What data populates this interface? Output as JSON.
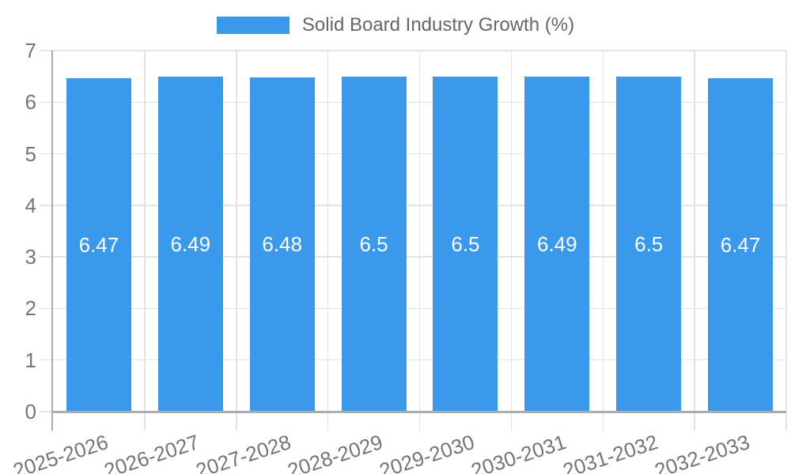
{
  "chart_data": {
    "type": "bar",
    "title": "Solid Board Industry Growth (%)",
    "legend": {
      "label": "Solid Board Industry Growth (%)",
      "position": "top"
    },
    "categories": [
      "2025-2026",
      "2026-2027",
      "2027-2028",
      "2028-2029",
      "2029-2030",
      "2030-2031",
      "2031-2032",
      "2032-2033"
    ],
    "series": [
      {
        "name": "Solid Board Industry Growth (%)",
        "values": [
          6.47,
          6.49,
          6.48,
          6.5,
          6.5,
          6.49,
          6.5,
          6.47
        ]
      }
    ],
    "bar_labels": [
      "6.47",
      "6.49",
      "6.48",
      "6.5",
      "6.5",
      "6.49",
      "6.5",
      "6.47"
    ],
    "xlabel": "",
    "ylabel": "",
    "ylim": [
      0,
      7
    ],
    "yticks": [
      "0",
      "1",
      "2",
      "3",
      "4",
      "5",
      "6",
      "7"
    ],
    "grid": true,
    "colors": {
      "bar": "#3B99EC",
      "grid": "#E3E3E3",
      "axis": "#ACACAC",
      "tick_label": "#757575",
      "legend_text": "#666666",
      "bar_label": "#FFFFFF",
      "background": "#FFFFFF"
    }
  }
}
